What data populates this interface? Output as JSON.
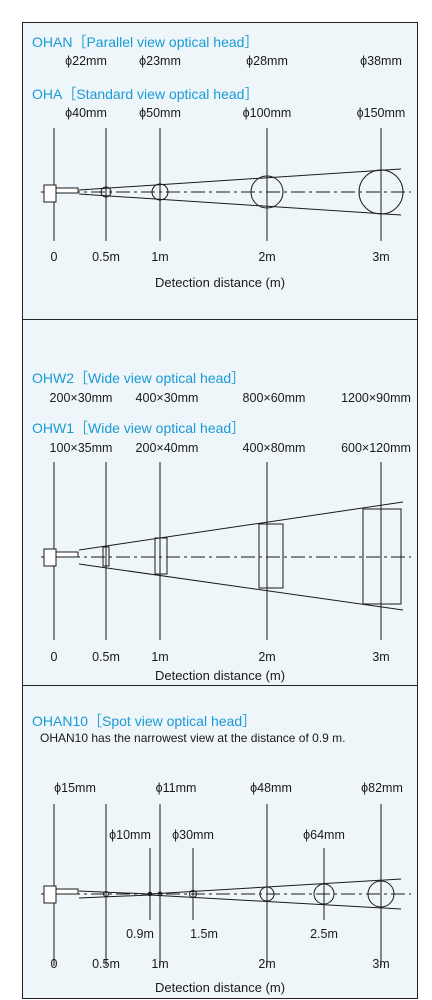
{
  "panel1": {
    "ohan": {
      "title": "OHAN［Parallel view optical head］",
      "sizes": [
        "ϕ22mm",
        "ϕ23mm",
        "ϕ28mm",
        "ϕ38mm"
      ]
    },
    "oha": {
      "title": "OHA［Standard view optical head］",
      "sizes": [
        "ϕ40mm",
        "ϕ50mm",
        "ϕ100mm",
        "ϕ150mm"
      ]
    },
    "ticks": [
      "0",
      "0.5m",
      "1m",
      "2m",
      "3m"
    ],
    "xlabel": "Detection distance (m)"
  },
  "panel2": {
    "ohw2": {
      "title": "OHW2［Wide view optical head］",
      "sizes": [
        "200×30mm",
        "400×30mm",
        "800×60mm",
        "1200×90mm"
      ]
    },
    "ohw1": {
      "title": "OHW1［Wide view optical head］",
      "sizes": [
        "100×35mm",
        "200×40mm",
        "400×80mm",
        "600×120mm"
      ]
    },
    "ticks": [
      "0",
      "0.5m",
      "1m",
      "2m",
      "3m"
    ],
    "xlabel": "Detection distance (m)"
  },
  "panel3": {
    "title": "OHAN10［Spot view optical head］",
    "note": "OHAN10 has the narrowest view at the distance of 0.9 m.",
    "upper_sizes": [
      "ϕ15mm",
      "ϕ11mm",
      "ϕ48mm",
      "ϕ82mm"
    ],
    "mid_sizes": [
      "ϕ10mm",
      "ϕ30mm",
      "ϕ64mm"
    ],
    "sub_ticks": [
      "0.9m",
      "1.5m",
      "2.5m"
    ],
    "ticks": [
      "0",
      "0.5m",
      "1m",
      "2m",
      "3m"
    ],
    "xlabel": "Detection distance (m)"
  },
  "colors": {
    "title": "#1a9ad6",
    "panel_bg": "#eef6fa",
    "line": "#1a1a1a"
  }
}
